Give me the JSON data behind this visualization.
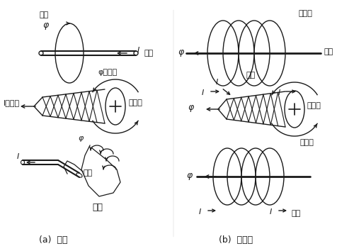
{
  "bg": "#ffffff",
  "lc": "#1a1a1a",
  "title_a": "(a)  導体",
  "title_b": "(b)  コイル",
  "t_jisoku": "磁束",
  "t_doutai": "導体",
  "t_phi": "φ",
  "t_phi_dir": "φの方向",
  "t_I_dir": "Iの方向",
  "t_migi_neji": "右ねじ",
  "t_migi_te": "右手",
  "t_coil": "コイル",
  "t_denryu": "電流",
  "t_I": "I"
}
